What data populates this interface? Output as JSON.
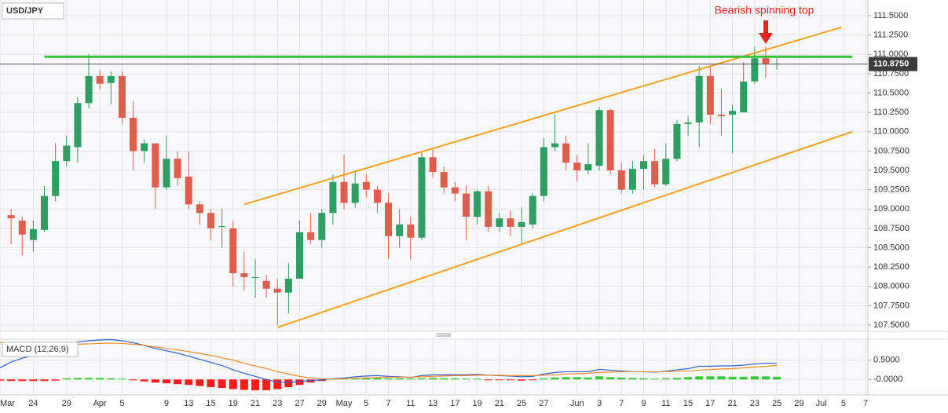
{
  "chart_data": [
    {
      "type": "candlestick",
      "title": "USD/JPY",
      "open": [
        null,
        108.92,
        108.85,
        108.6,
        108.73,
        109.17,
        109.62,
        109.8,
        110.37,
        110.72,
        110.63,
        110.72,
        110.18,
        109.75,
        109.85,
        109.28,
        109.65,
        109.42,
        109.06,
        108.95,
        108.77,
        108.75,
        108.17,
        108.12,
        108.07,
        107.97,
        107.92,
        108.1,
        108.7,
        108.6,
        108.95,
        109.35,
        109.08,
        109.35,
        109.25,
        109.08,
        108.65,
        108.8,
        108.63,
        109.67,
        109.48,
        109.28,
        109.2,
        108.9,
        109.23,
        108.77,
        108.88,
        108.77,
        108.8,
        109.17,
        109.8,
        109.85,
        109.6,
        109.5,
        109.56,
        110.28,
        109.5,
        109.25,
        109.52,
        109.62,
        109.32,
        109.65,
        110.1,
        110.12,
        110.72,
        110.22,
        110.22,
        110.25,
        110.65,
        110.95,
        110.87,
        null,
        null,
        null,
        null,
        null,
        null,
        null,
        null
      ],
      "high": [
        null,
        109.0,
        108.9,
        108.85,
        109.3,
        109.85,
        109.95,
        110.45,
        111.0,
        110.8,
        110.78,
        110.78,
        110.4,
        109.9,
        109.85,
        109.95,
        109.75,
        109.75,
        109.1,
        109.0,
        109.0,
        108.85,
        108.45,
        108.35,
        108.15,
        108.1,
        108.3,
        108.85,
        108.95,
        109.0,
        109.45,
        109.7,
        109.48,
        109.45,
        109.3,
        109.2,
        109.0,
        108.9,
        109.75,
        109.78,
        109.55,
        109.35,
        109.3,
        109.25,
        109.3,
        108.95,
        108.98,
        109.02,
        109.2,
        109.92,
        110.22,
        109.95,
        109.7,
        109.85,
        110.32,
        110.3,
        109.6,
        109.62,
        109.7,
        109.78,
        109.85,
        110.15,
        110.2,
        110.85,
        110.85,
        110.55,
        110.35,
        110.9,
        111.1,
        111.1,
        110.95,
        null,
        null,
        null,
        null,
        null,
        null,
        null,
        null
      ],
      "low": [
        null,
        108.55,
        108.4,
        108.45,
        108.7,
        109.1,
        109.55,
        109.6,
        110.3,
        110.55,
        110.35,
        110.1,
        109.5,
        109.6,
        109.0,
        109.25,
        109.3,
        109.0,
        108.8,
        108.6,
        108.5,
        108.0,
        107.95,
        107.85,
        107.85,
        107.5,
        107.65,
        108.1,
        108.55,
        108.5,
        108.8,
        109.0,
        109.02,
        109.15,
        108.95,
        108.35,
        108.5,
        108.35,
        108.6,
        109.4,
        109.2,
        109.1,
        108.6,
        108.8,
        108.7,
        108.7,
        108.65,
        108.55,
        108.75,
        109.1,
        109.75,
        109.5,
        109.35,
        109.45,
        109.5,
        109.45,
        109.2,
        109.2,
        109.25,
        109.28,
        109.3,
        109.62,
        109.95,
        109.8,
        110.1,
        109.95,
        109.72,
        110.25,
        110.62,
        110.7,
        110.8,
        null,
        null,
        null,
        null,
        null,
        null,
        null,
        null
      ],
      "close": [
        null,
        108.88,
        108.67,
        108.74,
        109.17,
        109.62,
        109.82,
        110.37,
        110.72,
        110.62,
        110.72,
        110.18,
        109.75,
        109.85,
        109.28,
        109.65,
        109.4,
        109.06,
        108.95,
        108.75,
        108.78,
        108.17,
        108.12,
        108.12,
        107.97,
        107.92,
        108.1,
        108.7,
        108.6,
        108.95,
        109.35,
        109.08,
        109.33,
        109.25,
        109.08,
        108.65,
        108.8,
        108.63,
        109.67,
        109.48,
        109.28,
        109.2,
        108.9,
        109.23,
        108.77,
        108.88,
        108.77,
        108.83,
        109.17,
        109.8,
        109.85,
        109.6,
        109.5,
        109.58,
        110.28,
        109.5,
        109.25,
        109.52,
        109.62,
        109.32,
        109.65,
        110.1,
        110.12,
        110.72,
        110.22,
        110.2,
        110.27,
        110.65,
        110.95,
        110.87,
        110.88,
        null,
        null,
        null,
        null,
        null,
        null,
        null,
        null
      ],
      "up_color": "#2e9e62",
      "down_color": "#e05c4b",
      "ylim": [
        107.419,
        111.703
      ],
      "yticks": [
        {
          "value": 107.5,
          "label": "107.5000"
        },
        {
          "value": 107.75,
          "label": "107.7500"
        },
        {
          "value": 108,
          "label": "108.0000"
        },
        {
          "value": 108.25,
          "label": "108.2500"
        },
        {
          "value": 108.5,
          "label": "108.5000"
        },
        {
          "value": 108.75,
          "label": "108.7500"
        },
        {
          "value": 109,
          "label": "109.0000"
        },
        {
          "value": 109.25,
          "label": "109.2500"
        },
        {
          "value": 109.5,
          "label": "109.5000"
        },
        {
          "value": 109.75,
          "label": "109.7500"
        },
        {
          "value": 110,
          "label": "110.0000"
        },
        {
          "value": 110.25,
          "label": "110.2500"
        },
        {
          "value": 110.5,
          "label": "110.5000"
        },
        {
          "value": 110.75,
          "label": "110.7500"
        },
        {
          "value": 111,
          "label": "111.0000"
        },
        {
          "value": 111.25,
          "label": "111.2500"
        },
        {
          "value": 111.5,
          "label": "111.5000"
        }
      ],
      "grid": true,
      "last_price": {
        "value": 110.875,
        "label": "110.8750"
      },
      "trendlines": [
        {
          "color": "#f5a01e",
          "width": 2,
          "x": [
            22,
            75.8
          ],
          "y": [
            109.06,
            111.35
          ]
        },
        {
          "color": "#f5a01e",
          "width": 2,
          "x": [
            25,
            76.8
          ],
          "y": [
            107.47,
            110.0
          ]
        },
        {
          "color": "#33c433",
          "width": 3,
          "x": [
            4,
            76.8
          ],
          "y": [
            110.97,
            110.97
          ]
        }
      ],
      "annotation": {
        "text": "Bearish spinning top",
        "color": "#e8261f"
      }
    },
    {
      "type": "macd",
      "title": "MACD (12,26,9)",
      "categories": [
        "Mar",
        null,
        null,
        "24",
        null,
        null,
        "29",
        null,
        null,
        "Apr",
        null,
        "5",
        null,
        null,
        null,
        "9",
        null,
        "13",
        null,
        "15",
        null,
        "19",
        null,
        "21",
        null,
        "23",
        null,
        "27",
        null,
        "29",
        null,
        "May",
        null,
        "5",
        null,
        "7",
        null,
        "11",
        null,
        "13",
        null,
        "17",
        null,
        "19",
        null,
        "21",
        null,
        "25",
        null,
        "27",
        null,
        null,
        "Jun",
        null,
        "3",
        null,
        "7",
        null,
        "9",
        null,
        "11",
        null,
        "15",
        null,
        "17",
        null,
        "21",
        null,
        "23",
        null,
        "25",
        null,
        "29",
        null,
        "Jul",
        null,
        "5",
        null,
        "7"
      ],
      "ylim": [
        -0.4,
        1.04
      ],
      "yticks": [
        {
          "value": 0.5,
          "label": "0.5000"
        },
        {
          "value": 0,
          "label": "-0.0000"
        }
      ],
      "histogram": {
        "up_color": "#33cc33",
        "down_color": "#ff1a1a",
        "values": [
          -0.03,
          -0.04,
          -0.04,
          -0.04,
          -0.04,
          -0.03,
          0.03,
          0.04,
          0.04,
          0.04,
          0.03,
          0.02,
          -0.02,
          -0.05,
          -0.08,
          -0.1,
          -0.12,
          -0.14,
          -0.17,
          -0.2,
          -0.22,
          -0.25,
          -0.27,
          -0.28,
          -0.28,
          -0.25,
          -0.2,
          -0.14,
          -0.08,
          -0.04,
          0.02,
          0.03,
          0.04,
          0.04,
          0.04,
          0.03,
          0.03,
          0.02,
          0.03,
          0.04,
          0.03,
          0.03,
          0.02,
          0.02,
          -0.01,
          -0.02,
          -0.02,
          -0.03,
          -0.02,
          0.03,
          0.05,
          0.06,
          0.06,
          0.05,
          0.08,
          0.06,
          0.05,
          0.04,
          0.03,
          0.02,
          0.03,
          0.04,
          0.06,
          0.08,
          0.08,
          0.08,
          0.07,
          0.07,
          0.08,
          0.08,
          0.07,
          null,
          null,
          null,
          null,
          null,
          null,
          null,
          null
        ]
      },
      "series": [
        {
          "color": "#2f5fd0",
          "values": [
            0.3,
            0.45,
            0.55,
            0.62,
            0.72,
            0.82,
            0.9,
            0.97,
            1.0,
            1.02,
            1.03,
            1.0,
            0.95,
            0.88,
            0.8,
            0.74,
            0.68,
            0.6,
            0.52,
            0.44,
            0.36,
            0.25,
            0.16,
            0.08,
            0.0,
            -0.07,
            -0.08,
            -0.05,
            -0.03,
            -0.01,
            0.02,
            0.04,
            0.07,
            0.09,
            0.1,
            0.08,
            0.07,
            0.05,
            0.1,
            0.12,
            0.12,
            0.12,
            0.12,
            0.13,
            0.11,
            0.1,
            0.09,
            0.07,
            0.08,
            0.14,
            0.18,
            0.2,
            0.2,
            0.2,
            0.26,
            0.24,
            0.22,
            0.2,
            0.2,
            0.19,
            0.21,
            0.25,
            0.28,
            0.34,
            0.34,
            0.35,
            0.35,
            0.37,
            0.4,
            0.42,
            0.42,
            null,
            null,
            null,
            null,
            null,
            null,
            null,
            null
          ]
        },
        {
          "color": "#f08c28",
          "values": [
            0.95,
            0.94,
            0.93,
            0.92,
            0.91,
            0.9,
            0.9,
            0.91,
            0.92,
            0.93,
            0.94,
            0.93,
            0.91,
            0.88,
            0.84,
            0.8,
            0.76,
            0.72,
            0.67,
            0.62,
            0.56,
            0.5,
            0.42,
            0.35,
            0.28,
            0.2,
            0.14,
            0.08,
            0.04,
            0.02,
            0.01,
            0.02,
            0.03,
            0.04,
            0.05,
            0.06,
            0.06,
            0.06,
            0.07,
            0.08,
            0.09,
            0.1,
            0.1,
            0.11,
            0.11,
            0.11,
            0.1,
            0.1,
            0.1,
            0.11,
            0.12,
            0.14,
            0.15,
            0.16,
            0.18,
            0.19,
            0.2,
            0.2,
            0.2,
            0.2,
            0.2,
            0.21,
            0.22,
            0.24,
            0.26,
            0.27,
            0.28,
            0.3,
            0.32,
            0.34,
            0.36,
            null,
            null,
            null,
            null,
            null,
            null,
            null,
            null
          ]
        }
      ]
    }
  ]
}
